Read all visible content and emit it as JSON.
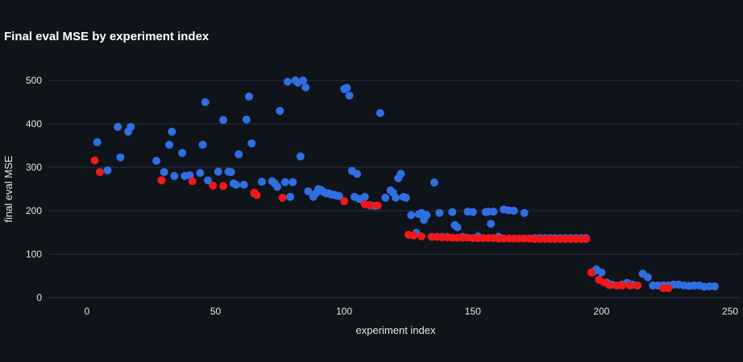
{
  "chart_data": {
    "type": "scatter",
    "title": "Final eval MSE by experiment index",
    "xlabel": "experiment index",
    "ylabel": "final eval MSE",
    "xlim": [
      -15,
      255
    ],
    "ylim": [
      0,
      500
    ],
    "xticks": [
      0,
      50,
      100,
      150,
      200,
      250
    ],
    "yticks": [
      0,
      100,
      200,
      300,
      400,
      500
    ],
    "grid": true,
    "colors": {
      "blue": "#2f6fe4",
      "red": "#f01818"
    },
    "series": [
      {
        "color": "#2f6fe4",
        "x": [
          4,
          8,
          12,
          13,
          16,
          17,
          27,
          30,
          32,
          33,
          34,
          37,
          38,
          40,
          44,
          45,
          46,
          47,
          51,
          53,
          55,
          56,
          57,
          58,
          59,
          61,
          62,
          63,
          64,
          65,
          68,
          72,
          73,
          74,
          75,
          77,
          78,
          79,
          80,
          81,
          82,
          83,
          84,
          85,
          86,
          88,
          89,
          90,
          91,
          92,
          93,
          94,
          95,
          96,
          97,
          98,
          100,
          101,
          102,
          103,
          104,
          105,
          106,
          107,
          108,
          110,
          112,
          114,
          116,
          118,
          119,
          120,
          121,
          122,
          123,
          124,
          126,
          128,
          129,
          130,
          131,
          132,
          134,
          135,
          137,
          138,
          140,
          142,
          143,
          144,
          146,
          148,
          150,
          152,
          155,
          156,
          157,
          158,
          160,
          162,
          164,
          166,
          170,
          174,
          176,
          178,
          180,
          182,
          184,
          186,
          188,
          190,
          192,
          194,
          197,
          198,
          200,
          202,
          204,
          206,
          208,
          210,
          212,
          214,
          216,
          218,
          220,
          222,
          224,
          226,
          228,
          230,
          232,
          234,
          236,
          238,
          240,
          242,
          244
        ],
        "y": [
          358,
          293,
          393,
          323,
          382,
          393,
          315,
          289,
          352,
          382,
          280,
          333,
          280,
          282,
          287,
          352,
          450,
          270,
          290,
          409,
          290,
          289,
          263,
          260,
          330,
          260,
          410,
          463,
          355,
          240,
          267,
          268,
          263,
          255,
          430,
          266,
          497,
          232,
          266,
          500,
          495,
          325,
          500,
          484,
          245,
          232,
          240,
          250,
          248,
          243,
          240,
          240,
          237,
          237,
          235,
          234,
          480,
          483,
          465,
          292,
          232,
          285,
          227,
          225,
          232,
          212,
          211,
          425,
          230,
          247,
          242,
          230,
          275,
          285,
          232,
          230,
          190,
          149,
          192,
          195,
          179,
          190,
          140,
          265,
          195,
          140,
          140,
          197,
          167,
          162,
          140,
          198,
          197,
          141,
          197,
          198,
          170,
          198,
          140,
          203,
          201,
          200,
          195,
          137,
          137,
          137,
          137,
          137,
          137,
          137,
          137,
          137,
          137,
          137,
          60,
          65,
          58,
          35,
          30,
          28,
          30,
          34,
          30,
          28,
          55,
          47,
          28,
          28,
          28,
          28,
          30,
          30,
          28,
          27,
          28,
          28,
          25,
          26,
          26
        ]
      },
      {
        "color": "#f01818",
        "x": [
          3,
          5,
          29,
          41,
          49,
          53,
          65,
          66,
          76,
          100,
          108,
          110,
          113,
          125,
          127,
          130,
          134,
          136,
          138,
          140,
          142,
          144,
          146,
          148,
          150,
          152,
          154,
          156,
          158,
          160,
          162,
          164,
          166,
          168,
          170,
          172,
          174,
          176,
          178,
          180,
          182,
          184,
          186,
          188,
          190,
          192,
          194,
          196,
          199,
          201,
          203,
          206,
          208,
          211,
          214,
          224,
          226
        ],
        "y": [
          316,
          289,
          270,
          268,
          258,
          257,
          242,
          236,
          230,
          222,
          215,
          213,
          212,
          145,
          143,
          141,
          140,
          140,
          139,
          139,
          138,
          138,
          138,
          138,
          137,
          137,
          137,
          137,
          137,
          136,
          136,
          136,
          136,
          136,
          136,
          136,
          135,
          135,
          135,
          135,
          135,
          135,
          135,
          135,
          135,
          135,
          135,
          58,
          41,
          35,
          29,
          28,
          28,
          28,
          28,
          22,
          22
        ]
      }
    ]
  }
}
